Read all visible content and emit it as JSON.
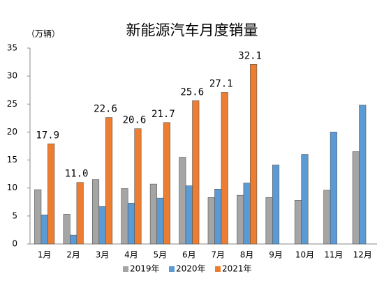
{
  "chart_data": {
    "type": "bar",
    "title": "新能源汽车月度销量",
    "y_label": "（万辆）",
    "categories": [
      "1月",
      "2月",
      "3月",
      "4月",
      "5月",
      "6月",
      "7月",
      "8月",
      "9月",
      "10月",
      "11月",
      "12月"
    ],
    "series": [
      {
        "name": "2019年",
        "color": "#a5a5a5",
        "values": [
          9.7,
          5.3,
          11.5,
          9.9,
          10.7,
          15.5,
          8.3,
          8.7,
          8.3,
          7.8,
          9.6,
          16.5
        ]
      },
      {
        "name": "2020年",
        "color": "#5b9bd5",
        "values": [
          5.2,
          1.6,
          6.7,
          7.3,
          8.2,
          10.4,
          9.8,
          10.9,
          14.1,
          16.0,
          20.0,
          24.8
        ]
      },
      {
        "name": "2021年",
        "color": "#ed7d31",
        "values": [
          17.9,
          11.0,
          22.6,
          20.6,
          21.7,
          25.6,
          27.1,
          32.1,
          null,
          null,
          null,
          null
        ],
        "value_labels": [
          "17.9",
          "11.0",
          "22.6",
          "20.6",
          "21.7",
          "25.6",
          "27.1",
          "32.1",
          null,
          null,
          null,
          null
        ]
      }
    ],
    "ylim": [
      0,
      35
    ],
    "yticks": [
      0,
      5,
      10,
      15,
      20,
      25,
      30,
      35
    ],
    "grid": false,
    "legend": "bottom"
  }
}
